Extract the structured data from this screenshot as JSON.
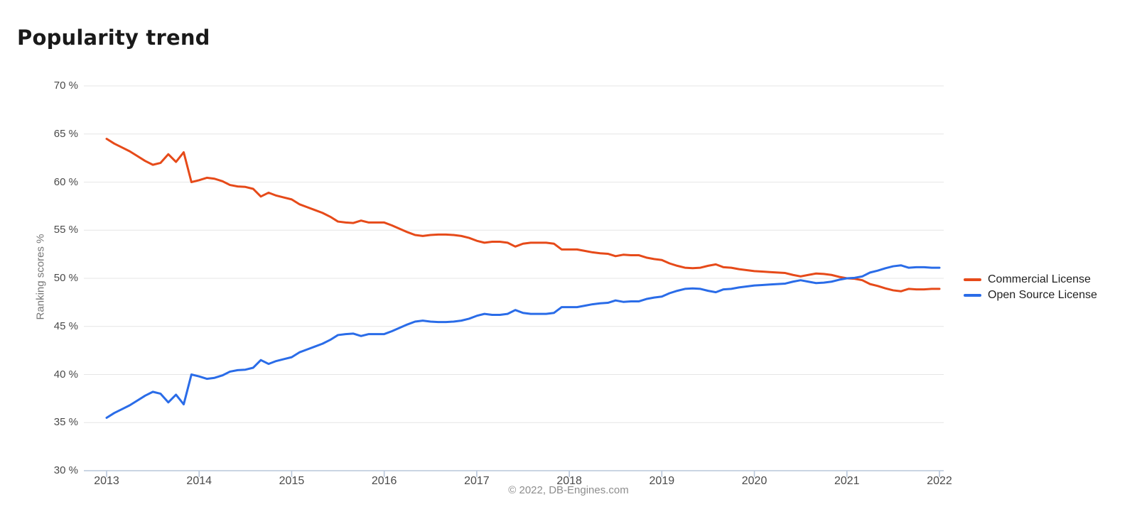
{
  "page": {
    "title": "Popularity trend",
    "copyright_note": "© 2022, DB-Engines.com"
  },
  "chart_data": {
    "type": "line",
    "title": "Popularity trend",
    "ylabel": "Ranking scores %",
    "ylim": [
      30,
      70
    ],
    "grid": true,
    "legend_position": "right",
    "source_note": "© 2022, DB-Engines.com",
    "x_unit": "month",
    "x_start": "2013-01",
    "x_end": "2022-01",
    "x_tick_labels": [
      "2013",
      "2014",
      "2015",
      "2016",
      "2017",
      "2018",
      "2019",
      "2020",
      "2021",
      "2022"
    ],
    "x_tick_years": [
      2013,
      2014,
      2015,
      2016,
      2017,
      2018,
      2019,
      2020,
      2021,
      2022
    ],
    "y_tick_labels": [
      "70 %",
      "65 %",
      "60 %",
      "55 %",
      "50 %",
      "45 %",
      "40 %",
      "35 %",
      "30 %"
    ],
    "y_tick_values": [
      70,
      65,
      60,
      55,
      50,
      45,
      40,
      35,
      30
    ],
    "axis_color": "#b9c7da",
    "grid_color": "#e6e6e6",
    "series": [
      {
        "name": "Commercial License",
        "color": "#e64a19",
        "values": [
          64.5,
          64.0,
          63.6,
          63.2,
          62.7,
          62.2,
          61.8,
          62.0,
          62.9,
          62.1,
          63.1,
          60.0,
          60.2,
          60.45,
          60.35,
          60.1,
          59.7,
          59.55,
          59.5,
          59.3,
          58.5,
          58.9,
          58.6,
          58.4,
          58.2,
          57.7,
          57.4,
          57.1,
          56.8,
          56.4,
          55.9,
          55.8,
          55.75,
          56.0,
          55.8,
          55.8,
          55.8,
          55.5,
          55.15,
          54.8,
          54.5,
          54.4,
          54.5,
          54.55,
          54.55,
          54.5,
          54.4,
          54.2,
          53.9,
          53.7,
          53.8,
          53.8,
          53.7,
          53.3,
          53.6,
          53.7,
          53.7,
          53.7,
          53.6,
          53.0,
          53.0,
          53.0,
          52.85,
          52.7,
          52.6,
          52.55,
          52.3,
          52.45,
          52.4,
          52.4,
          52.15,
          52.0,
          51.9,
          51.55,
          51.3,
          51.1,
          51.05,
          51.1,
          51.3,
          51.45,
          51.15,
          51.1,
          50.95,
          50.85,
          50.75,
          50.7,
          50.65,
          50.6,
          50.55,
          50.35,
          50.2,
          50.35,
          50.5,
          50.45,
          50.35,
          50.15,
          50.0,
          49.95,
          49.8,
          49.4,
          49.2,
          48.95,
          48.75,
          48.65,
          48.9,
          48.85,
          48.85,
          48.9,
          48.9
        ]
      },
      {
        "name": "Open Source License",
        "color": "#2a6ce8",
        "values": [
          35.5,
          36.0,
          36.4,
          36.8,
          37.3,
          37.8,
          38.2,
          38.0,
          37.1,
          37.9,
          36.9,
          40.0,
          39.8,
          39.55,
          39.65,
          39.9,
          40.3,
          40.45,
          40.5,
          40.7,
          41.5,
          41.1,
          41.4,
          41.6,
          41.8,
          42.3,
          42.6,
          42.9,
          43.2,
          43.6,
          44.1,
          44.2,
          44.25,
          44.0,
          44.2,
          44.2,
          44.2,
          44.5,
          44.85,
          45.2,
          45.5,
          45.6,
          45.5,
          45.45,
          45.45,
          45.5,
          45.6,
          45.8,
          46.1,
          46.3,
          46.2,
          46.2,
          46.3,
          46.7,
          46.4,
          46.3,
          46.3,
          46.3,
          46.4,
          47.0,
          47.0,
          47.0,
          47.15,
          47.3,
          47.4,
          47.45,
          47.7,
          47.55,
          47.6,
          47.6,
          47.85,
          48.0,
          48.1,
          48.45,
          48.7,
          48.9,
          48.95,
          48.9,
          48.7,
          48.55,
          48.85,
          48.9,
          49.05,
          49.15,
          49.25,
          49.3,
          49.35,
          49.4,
          49.45,
          49.65,
          49.8,
          49.65,
          49.5,
          49.55,
          49.65,
          49.85,
          50.0,
          50.05,
          50.2,
          50.6,
          50.8,
          51.05,
          51.25,
          51.35,
          51.1,
          51.15,
          51.15,
          51.1,
          51.1
        ]
      }
    ]
  }
}
